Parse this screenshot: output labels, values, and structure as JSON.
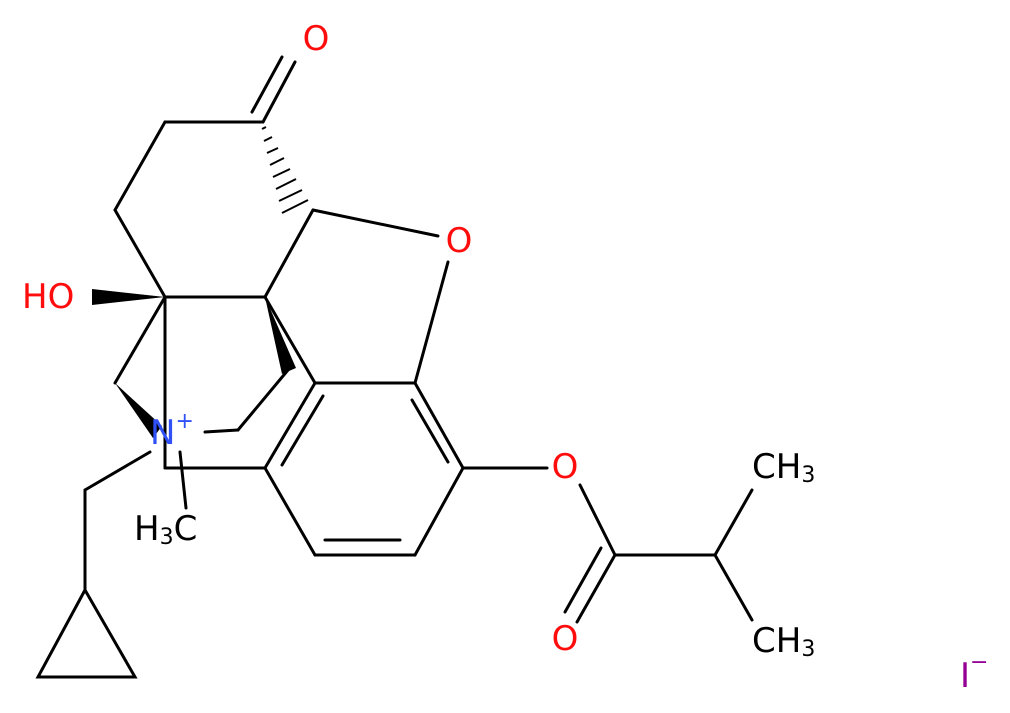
{
  "atoms": [
    [
      "O"
    ],
    [
      "O"
    ],
    [
      "HO"
    ],
    [
      "N",
      "+"
    ],
    [
      "H",
      "3",
      "C"
    ],
    [
      "O"
    ],
    [
      "O"
    ],
    [
      "C",
      "H",
      "3"
    ],
    [
      "C",
      "H",
      "3"
    ],
    [
      "I",
      "−"
    ]
  ]
}
